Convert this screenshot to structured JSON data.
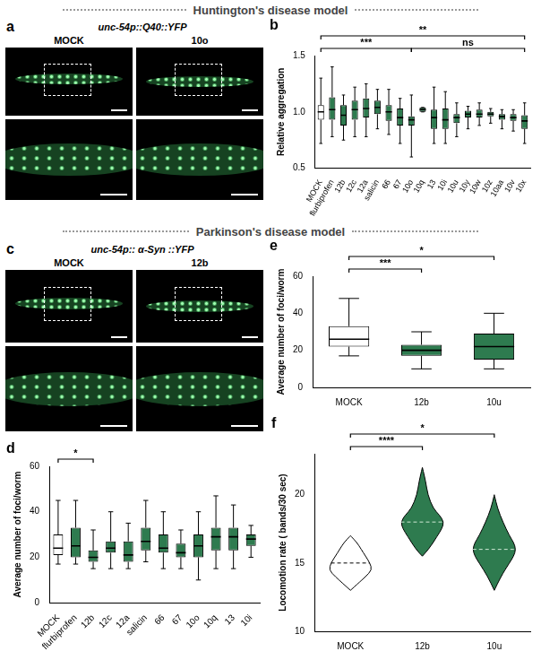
{
  "sections": [
    "Huntington's disease model",
    "Parkinson's disease model"
  ],
  "images": [
    {
      "panel": "a",
      "title": "unc-54p::Q40::YFP",
      "columns": [
        "MOCK",
        "10o"
      ]
    },
    {
      "panel": "c",
      "title": "unc-54p:: α-Syn ::YFP",
      "columns": [
        "MOCK",
        "12b"
      ]
    }
  ],
  "chart_data": [
    {
      "panel": "b",
      "type": "box",
      "categories": [
        "MOCK",
        "flurbiprofen",
        "12b",
        "12c",
        "12a",
        "salicin",
        "66",
        "67",
        "10o",
        "10q",
        "13",
        "10i",
        "10u",
        "10y",
        "10w",
        "10z",
        "10aa",
        "10v",
        "10x"
      ],
      "boxes": [
        {
          "min": 0.72,
          "q1": 0.93,
          "median": 1.0,
          "q3": 1.06,
          "max": 1.3
        },
        {
          "min": 0.78,
          "q1": 0.93,
          "median": 1.02,
          "q3": 1.13,
          "max": 1.4
        },
        {
          "min": 0.75,
          "q1": 0.88,
          "median": 0.97,
          "q3": 1.06,
          "max": 1.15
        },
        {
          "min": 0.78,
          "q1": 0.93,
          "median": 1.02,
          "q3": 1.1,
          "max": 1.22
        },
        {
          "min": 0.78,
          "q1": 0.95,
          "median": 1.03,
          "q3": 1.12,
          "max": 1.25
        },
        {
          "min": 0.85,
          "q1": 0.98,
          "median": 1.04,
          "q3": 1.1,
          "max": 1.2
        },
        {
          "min": 0.8,
          "q1": 0.92,
          "median": 1.0,
          "q3": 1.06,
          "max": 1.2
        },
        {
          "min": 0.72,
          "q1": 0.88,
          "median": 0.95,
          "q3": 1.03,
          "max": 1.12
        },
        {
          "min": 0.6,
          "q1": 0.88,
          "median": 0.93,
          "q3": 0.96,
          "max": 1.15
        },
        {
          "min": 1.0,
          "q1": 1.0,
          "median": 1.02,
          "q3": 1.04,
          "max": 1.04
        },
        {
          "min": 0.72,
          "q1": 0.85,
          "median": 0.95,
          "q3": 1.02,
          "max": 1.22
        },
        {
          "min": 0.72,
          "q1": 0.85,
          "median": 0.93,
          "q3": 1.03,
          "max": 1.18
        },
        {
          "min": 0.78,
          "q1": 0.9,
          "median": 0.95,
          "q3": 0.98,
          "max": 1.08
        },
        {
          "min": 0.85,
          "q1": 0.95,
          "median": 0.98,
          "q3": 1.01,
          "max": 1.05
        },
        {
          "min": 0.88,
          "q1": 0.95,
          "median": 0.98,
          "q3": 1.02,
          "max": 1.08
        },
        {
          "min": 0.9,
          "q1": 0.96,
          "median": 0.98,
          "q3": 1.0,
          "max": 1.03
        },
        {
          "min": 0.85,
          "q1": 0.93,
          "median": 0.96,
          "q3": 0.98,
          "max": 1.02
        },
        {
          "min": 0.83,
          "q1": 0.92,
          "median": 0.95,
          "q3": 0.98,
          "max": 1.02
        },
        {
          "min": 0.72,
          "q1": 0.85,
          "median": 0.92,
          "q3": 0.97,
          "max": 1.08
        }
      ],
      "colors": [
        "#ffffff",
        "#2e7b4f",
        "#2e7b4f",
        "#2e7b4f",
        "#2e7b4f",
        "#2e7b4f",
        "#2e7b4f",
        "#2e7b4f",
        "#2e7b4f",
        "#2e7b4f",
        "#2e7b4f",
        "#2e7b4f",
        "#2e7b4f",
        "#2e7b4f",
        "#2e7b4f",
        "#2e7b4f",
        "#2e7b4f",
        "#2e7b4f",
        "#2e7b4f"
      ],
      "y_label": "Relative aggregation",
      "ylim": [
        0.5,
        1.5
      ],
      "yticks": [
        0.5,
        {
          "value": 1,
          "label": "1.0"
        },
        1.5
      ],
      "grid": false,
      "annotations": [
        {
          "from": "MOCK",
          "to": "10o",
          "label": "***"
        },
        {
          "from": "10o",
          "to": "10x",
          "label": "ns"
        },
        {
          "from": "MOCK",
          "to": "10x",
          "label": "**"
        }
      ]
    },
    {
      "panel": "d",
      "type": "box",
      "categories": [
        "MOCK",
        "flurbiprofen",
        "12b",
        "12c",
        "12a",
        "salicin",
        "66",
        "67",
        "10o",
        "10q",
        "13",
        "10i"
      ],
      "boxes": [
        {
          "min": 17,
          "q1": 21,
          "median": 24,
          "q3": 30,
          "max": 45
        },
        {
          "min": 17,
          "q1": 20,
          "median": 25,
          "q3": 33,
          "max": 45
        },
        {
          "min": 15,
          "q1": 18,
          "median": 20,
          "q3": 23,
          "max": 32
        },
        {
          "min": 15,
          "q1": 22,
          "median": 24,
          "q3": 27,
          "max": 40
        },
        {
          "min": 15,
          "q1": 18,
          "median": 21,
          "q3": 27,
          "max": 35
        },
        {
          "min": 18,
          "q1": 23,
          "median": 27,
          "q3": 33,
          "max": 45
        },
        {
          "min": 15,
          "q1": 22,
          "median": 24,
          "q3": 30,
          "max": 40
        },
        {
          "min": 15,
          "q1": 20,
          "median": 22,
          "q3": 26,
          "max": 32
        },
        {
          "min": 10,
          "q1": 20,
          "median": 25,
          "q3": 30,
          "max": 40
        },
        {
          "min": 15,
          "q1": 23,
          "median": 29,
          "q3": 33,
          "max": 47
        },
        {
          "min": 15,
          "q1": 23,
          "median": 29,
          "q3": 33,
          "max": 43
        },
        {
          "min": 20,
          "q1": 25,
          "median": 28,
          "q3": 30,
          "max": 34
        }
      ],
      "colors": [
        "#ffffff",
        "#2e7b4f",
        "#2e7b4f",
        "#2e7b4f",
        "#2e7b4f",
        "#2e7b4f",
        "#2e7b4f",
        "#2e7b4f",
        "#2e7b4f",
        "#2e7b4f",
        "#2e7b4f",
        "#2e7b4f"
      ],
      "y_label": "Average number of foci/worm",
      "ylim": [
        0,
        60
      ],
      "yticks": [
        0,
        20,
        40,
        60
      ],
      "grid": false,
      "annotations": [
        {
          "from": "MOCK",
          "to": "12b",
          "label": "*"
        }
      ]
    },
    {
      "panel": "e",
      "type": "box",
      "categories": [
        "MOCK",
        "12b",
        "10u"
      ],
      "boxes": [
        {
          "min": 17,
          "q1": 22,
          "median": 26,
          "q3": 33,
          "max": 48
        },
        {
          "min": 10,
          "q1": 17,
          "median": 20,
          "q3": 23,
          "max": 30
        },
        {
          "min": 10,
          "q1": 15,
          "median": 22,
          "q3": 29,
          "max": 40
        }
      ],
      "colors": [
        "#ffffff",
        "#2e7b4f",
        "#2e7b4f"
      ],
      "y_label": "Average number of foci/worm",
      "ylim": [
        0,
        60
      ],
      "yticks": [
        0,
        20,
        40,
        60
      ],
      "grid": false,
      "annotations": [
        {
          "from": "MOCK",
          "to": "12b",
          "label": "***"
        },
        {
          "from": "MOCK",
          "to": "10u",
          "label": "*"
        }
      ]
    },
    {
      "panel": "f",
      "type": "violin",
      "categories": [
        "MOCK",
        "12b",
        "10u"
      ],
      "violins": [
        {
          "y": [
            13,
            13.5,
            14,
            14.5,
            15,
            15.5,
            16,
            16.5,
            17
          ],
          "density": [
            0,
            0.35,
            0.7,
            1,
            0.9,
            0.7,
            0.5,
            0.3,
            0
          ],
          "median": 15
        },
        {
          "y": [
            15.5,
            16,
            17,
            17.5,
            18,
            18.5,
            19,
            20,
            21,
            22
          ],
          "density": [
            0,
            0.3,
            0.7,
            0.9,
            1,
            0.8,
            0.5,
            0.25,
            0.15,
            0
          ],
          "median": 18
        },
        {
          "y": [
            13,
            14,
            15,
            15.5,
            16,
            16.5,
            17,
            18,
            19,
            20
          ],
          "density": [
            0,
            0.3,
            0.7,
            0.9,
            1,
            0.9,
            0.7,
            0.4,
            0.15,
            0
          ],
          "median": 16
        }
      ],
      "colors": [
        "#ffffff",
        "#2e7b4f",
        "#2e7b4f"
      ],
      "y_label": "Locomotion rate ( bands/30 sec)",
      "ylim": [
        10,
        23
      ],
      "yticks": [
        10,
        15,
        20
      ],
      "grid": false,
      "annotations": [
        {
          "from": "MOCK",
          "to": "12b",
          "label": "****"
        },
        {
          "from": "MOCK",
          "to": "10u",
          "label": "*"
        }
      ]
    }
  ]
}
